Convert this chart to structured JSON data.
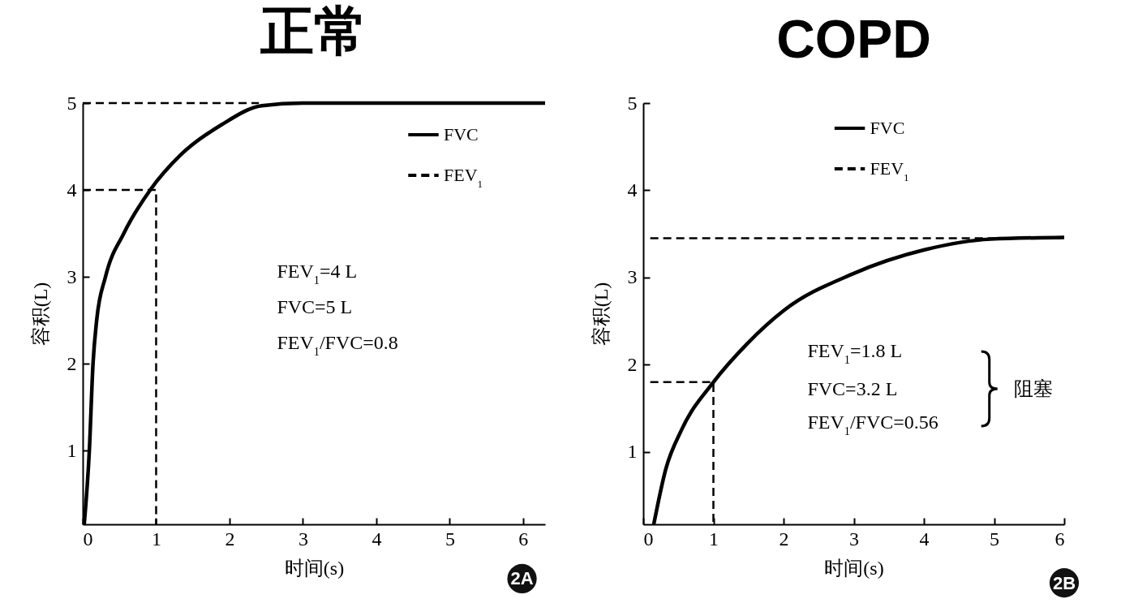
{
  "chart_data": [
    {
      "type": "line",
      "title": "正常",
      "xlabel": "时间(s)",
      "ylabel": "容积(L)",
      "xlim": [
        0,
        6.3
      ],
      "ylim": [
        0.15,
        5
      ],
      "xticks": [
        0,
        1,
        2,
        3,
        4,
        5,
        6
      ],
      "yticks": [
        1,
        2,
        3,
        4,
        5
      ],
      "legend": "top right",
      "annotations": [
        "FEV$_{1}$=4 L",
        "FVC=5 L",
        "FEV$_{1}$/FVC=0.8",
        "2A"
      ],
      "series": [
        {
          "name": "FVC",
          "color": "#000000",
          "line_style": "solid",
          "x": [
            0.02,
            0.09,
            0.14,
            0.19,
            0.31,
            0.56,
            0.92,
            1.33,
            1.89,
            2.44,
            3,
            6.3
          ],
          "values": [
            0.15,
            1,
            2,
            2.5,
            3,
            3.5,
            4,
            4.4,
            4.75,
            4.97,
            5,
            5
          ]
        },
        {
          "name": "FEV$_{1}$",
          "color": "#000000",
          "line_style": "dashed",
          "x": [
            0,
            2.4,
            null,
            0,
            1,
            1
          ],
          "values": [
            5,
            5,
            null,
            4,
            4,
            0.15
          ]
        }
      ]
    },
    {
      "type": "line",
      "title": "COPD",
      "xlabel": "时间(s)",
      "ylabel": "容积(L)",
      "xlim": [
        0,
        6
      ],
      "ylim": [
        0.17,
        5
      ],
      "xticks": [
        0,
        1,
        2,
        3,
        4,
        5,
        6
      ],
      "yticks": [
        1,
        2,
        3,
        4,
        5
      ],
      "legend": "top",
      "annotations": [
        "FEV$_{1}$=1.8 L",
        "FVC=3.2 L",
        "FEV$_{1}$/FVC=0.56",
        "阻塞",
        "2B"
      ],
      "series": [
        {
          "name": "FVC",
          "color": "#000000",
          "line_style": "solid",
          "x": [
            0.15,
            0.32,
            0.55,
            1,
            1.48,
            2,
            2.98,
            4.02,
            4.95,
            6
          ],
          "values": [
            0.17,
            0.8,
            1.26,
            1.8,
            2.24,
            2.62,
            3.04,
            3.32,
            3.44,
            3.46
          ]
        },
        {
          "name": "FEV$_{1}$",
          "color": "#000000",
          "line_style": "dashed",
          "x": [
            0.1,
            6,
            null,
            0.1,
            1,
            1
          ],
          "values": [
            3.45,
            3.45,
            null,
            1.8,
            1.8,
            0.17
          ]
        }
      ]
    }
  ]
}
